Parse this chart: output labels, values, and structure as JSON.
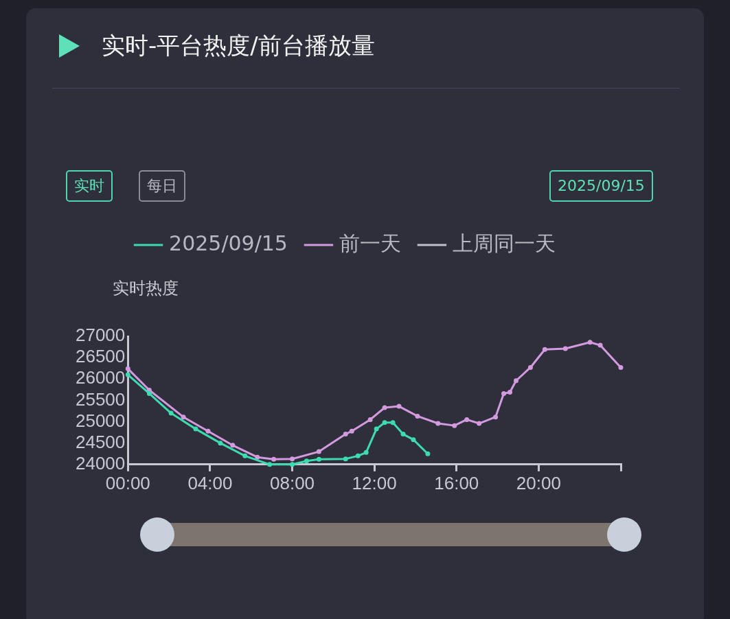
{
  "chart_data": {
    "type": "line",
    "title": "实时-平台热度/前台播放量",
    "ylabel": "实时热度",
    "annotations": [
      "实时",
      "每日",
      "2025/09/15"
    ],
    "xlim": [
      0,
      24
    ],
    "xticks": [
      {
        "value": 0,
        "label": "00:00"
      },
      {
        "value": 4,
        "label": "04:00"
      },
      {
        "value": 8,
        "label": "08:00"
      },
      {
        "value": 12,
        "label": "12:00"
      },
      {
        "value": 16,
        "label": "16:00"
      },
      {
        "value": 20,
        "label": "20:00"
      },
      {
        "value": 24,
        "label": null
      }
    ],
    "ylim": [
      24000,
      27000
    ],
    "yticks": [
      24000,
      24500,
      25000,
      25500,
      26000,
      26500,
      27000
    ],
    "grid": false,
    "legend": "top",
    "marker": "circle",
    "line_style": "solid",
    "series": [
      {
        "name": "2025/09/15",
        "color": "#3ddbb0",
        "x": [
          0,
          1.04,
          2.1,
          3.3,
          4.5,
          5.7,
          6.9,
          8,
          8.7,
          9.3,
          10.6,
          11.2,
          11.6,
          12.1,
          12.5,
          12.9,
          13.4,
          13.9,
          14.6
        ],
        "values": [
          26100,
          25660,
          25200,
          24830,
          24500,
          24200,
          24000,
          24000,
          24080,
          24120,
          24130,
          24200,
          24280,
          24830,
          24980,
          24980,
          24710,
          24580,
          24250
        ]
      },
      {
        "name": "前一天",
        "color": "#d49ae0",
        "x": [
          0,
          1.04,
          2.7,
          3.9,
          5.1,
          6.3,
          7.1,
          8,
          9.3,
          10.6,
          10.9,
          11.8,
          12.5,
          13.2,
          14.1,
          15.1,
          15.9,
          16.5,
          17.1,
          17.9,
          18.3,
          18.6,
          18.9,
          19.6,
          20.3,
          21.3,
          22.5,
          23,
          24
        ],
        "values": [
          26240,
          25740,
          25110,
          24780,
          24450,
          24170,
          24120,
          24130,
          24300,
          24710,
          24780,
          25050,
          25330,
          25360,
          25130,
          24960,
          24910,
          25050,
          24960,
          25110,
          25660,
          25690,
          25960,
          26270,
          26690,
          26710,
          26860,
          26790,
          26270
        ]
      },
      {
        "name": "上周同一天",
        "color": "#c0c0c8"
      }
    ]
  }
}
